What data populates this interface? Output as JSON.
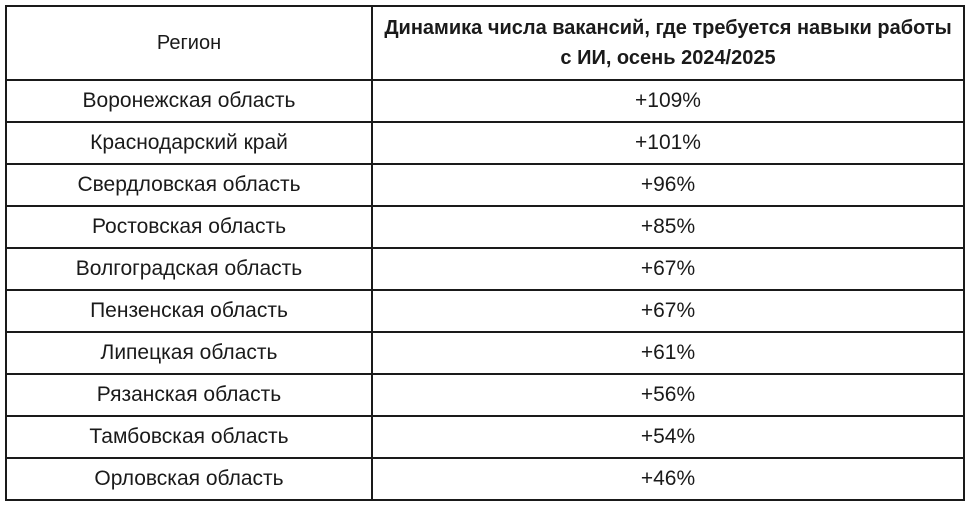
{
  "table": {
    "headers": {
      "region": "Регион",
      "dynamics": "Динамика числа вакансий, где требуется навыки работы с ИИ, осень 2024/2025"
    },
    "rows": [
      {
        "region": "Воронежская область",
        "value": "+109%"
      },
      {
        "region": "Краснодарский край",
        "value": "+101%"
      },
      {
        "region": "Свердловская область",
        "value": "+96%"
      },
      {
        "region": "Ростовская область",
        "value": "+85%"
      },
      {
        "region": "Волгоградская область",
        "value": "+67%"
      },
      {
        "region": "Пензенская область",
        "value": "+67%"
      },
      {
        "region": "Липецкая область",
        "value": "+61%"
      },
      {
        "region": "Рязанская область",
        "value": "+56%"
      },
      {
        "region": "Тамбовская область",
        "value": "+54%"
      },
      {
        "region": "Орловская область",
        "value": "+46%"
      }
    ]
  }
}
